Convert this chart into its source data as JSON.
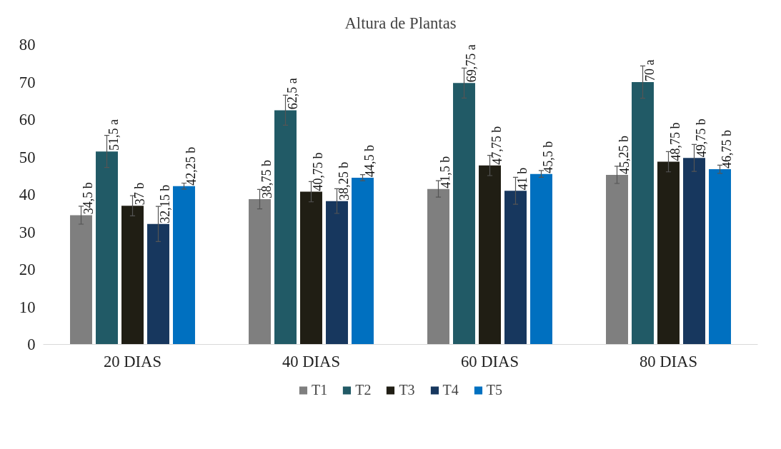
{
  "chart_data": {
    "type": "bar",
    "title": "Altura de Plantas",
    "categories": [
      "20 DIAS",
      "40 DIAS",
      "60 DIAS",
      "80 DIAS"
    ],
    "series": [
      {
        "name": "T1",
        "color": "#7f7f7f",
        "values": [
          34.5,
          38.75,
          41.5,
          45.25
        ],
        "errors": [
          2.4,
          2.6,
          2.2,
          2.3
        ],
        "value_labels": [
          "34,5 b",
          "38,75 b",
          "41,5 b",
          "45,25 b"
        ]
      },
      {
        "name": "T2",
        "color": "#215a66",
        "values": [
          51.5,
          62.5,
          69.75,
          70
        ],
        "errors": [
          4.3,
          4,
          4,
          4.3
        ],
        "value_labels": [
          "51,5 a",
          "62,5 a",
          "69,75 a",
          "70 a"
        ]
      },
      {
        "name": "T3",
        "color": "#201e14",
        "values": [
          37,
          40.75,
          47.75,
          48.75
        ],
        "errors": [
          2.7,
          2.7,
          2.7,
          2.7
        ],
        "value_labels": [
          "37 b",
          "40,75 b",
          "47,75 b",
          "48,75 b"
        ]
      },
      {
        "name": "T4",
        "color": "#17375e",
        "values": [
          32.15,
          38.25,
          41,
          49.75
        ],
        "errors": [
          4.7,
          3.3,
          3.6,
          3.6
        ],
        "value_labels": [
          "32,15 b",
          "38,25 b",
          "41 b",
          "49,75 b"
        ]
      },
      {
        "name": "T5",
        "color": "#0070c0",
        "values": [
          42.25,
          44.5,
          45.5,
          46.75
        ],
        "errors": [
          0.8,
          0.8,
          0.9,
          1.1
        ],
        "value_labels": [
          "42,25 b",
          "44,5 b",
          "45,5 b",
          "46,75 b"
        ]
      }
    ],
    "ylim": [
      0,
      80
    ],
    "yticks": [
      0,
      10,
      20,
      30,
      40,
      50,
      60,
      70,
      80
    ],
    "grid": false,
    "legend": "bottom"
  }
}
